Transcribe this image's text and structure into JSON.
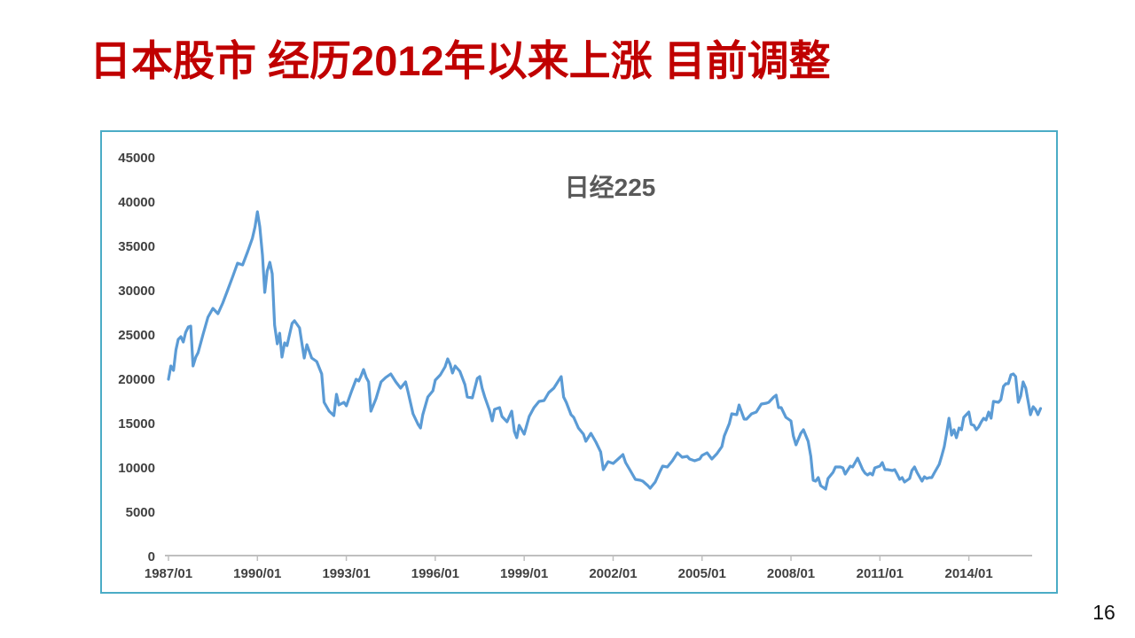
{
  "slide": {
    "title": "日本股市 经历2012年以来上涨 目前调整",
    "title_color": "#C00000",
    "page_number": "16",
    "background_color": "#ffffff"
  },
  "chart": {
    "title": "日经225",
    "title_color": "#595959",
    "panel_border_color": "#4BACC6",
    "line_color": "#5B9BD5",
    "axis_line_color": "#BFBFBF",
    "axis_label_color": "#404040",
    "y_axis_labels": [
      "45000",
      "40000",
      "35000",
      "30000",
      "25000",
      "20000",
      "15000",
      "10000",
      "5000",
      "0"
    ],
    "x_axis_labels": [
      "1987/01",
      "1990/01",
      "1993/01",
      "1996/01",
      "1999/01",
      "2002/01",
      "2005/01",
      "2008/01",
      "2011/01",
      "2014/01"
    ],
    "gridlines": false,
    "legend": false
  },
  "chart_data": {
    "type": "line",
    "title": "日经225",
    "series_name": "日经225",
    "xlabel": "",
    "ylabel": "",
    "x_unit": "decimal_year",
    "x_range": [
      1987.0,
      2016.45
    ],
    "ylim": [
      0,
      45000
    ],
    "y_tick_step": 5000,
    "x_tick_years": [
      1987,
      1990,
      1993,
      1996,
      1999,
      2002,
      2005,
      2008,
      2011,
      2014
    ],
    "points": [
      [
        1987.0,
        20000
      ],
      [
        1987.08,
        21500
      ],
      [
        1987.17,
        21000
      ],
      [
        1987.25,
        23300
      ],
      [
        1987.33,
        24500
      ],
      [
        1987.42,
        24800
      ],
      [
        1987.5,
        24200
      ],
      [
        1987.58,
        25300
      ],
      [
        1987.67,
        25900
      ],
      [
        1987.75,
        26000
      ],
      [
        1987.83,
        21500
      ],
      [
        1987.92,
        22500
      ],
      [
        1988.0,
        23000
      ],
      [
        1988.17,
        25100
      ],
      [
        1988.33,
        27000
      ],
      [
        1988.5,
        28000
      ],
      [
        1988.67,
        27400
      ],
      [
        1988.83,
        28600
      ],
      [
        1989.0,
        30100
      ],
      [
        1989.17,
        31600
      ],
      [
        1989.33,
        33100
      ],
      [
        1989.5,
        32900
      ],
      [
        1989.67,
        34400
      ],
      [
        1989.83,
        35900
      ],
      [
        1989.92,
        37200
      ],
      [
        1990.0,
        38900
      ],
      [
        1990.08,
        37200
      ],
      [
        1990.17,
        34000
      ],
      [
        1990.25,
        29800
      ],
      [
        1990.33,
        32200
      ],
      [
        1990.42,
        33200
      ],
      [
        1990.5,
        31900
      ],
      [
        1990.58,
        26100
      ],
      [
        1990.67,
        24000
      ],
      [
        1990.75,
        25200
      ],
      [
        1990.83,
        22500
      ],
      [
        1990.92,
        24100
      ],
      [
        1991.0,
        23800
      ],
      [
        1991.17,
        26300
      ],
      [
        1991.25,
        26600
      ],
      [
        1991.42,
        25800
      ],
      [
        1991.5,
        24100
      ],
      [
        1991.58,
        22400
      ],
      [
        1991.67,
        23900
      ],
      [
        1991.83,
        22400
      ],
      [
        1992.0,
        22000
      ],
      [
        1992.17,
        20600
      ],
      [
        1992.25,
        17400
      ],
      [
        1992.42,
        16400
      ],
      [
        1992.58,
        15900
      ],
      [
        1992.67,
        18300
      ],
      [
        1992.75,
        17100
      ],
      [
        1992.92,
        17400
      ],
      [
        1993.0,
        17000
      ],
      [
        1993.17,
        18600
      ],
      [
        1993.33,
        20000
      ],
      [
        1993.42,
        19800
      ],
      [
        1993.5,
        20400
      ],
      [
        1993.58,
        21100
      ],
      [
        1993.67,
        20200
      ],
      [
        1993.75,
        19700
      ],
      [
        1993.83,
        16400
      ],
      [
        1994.0,
        17800
      ],
      [
        1994.17,
        19700
      ],
      [
        1994.33,
        20200
      ],
      [
        1994.5,
        20600
      ],
      [
        1994.67,
        19700
      ],
      [
        1994.83,
        19000
      ],
      [
        1995.0,
        19700
      ],
      [
        1995.08,
        18600
      ],
      [
        1995.25,
        16100
      ],
      [
        1995.42,
        14900
      ],
      [
        1995.5,
        14500
      ],
      [
        1995.58,
        16000
      ],
      [
        1995.75,
        18000
      ],
      [
        1995.92,
        18700
      ],
      [
        1996.0,
        19900
      ],
      [
        1996.17,
        20500
      ],
      [
        1996.33,
        21400
      ],
      [
        1996.42,
        22300
      ],
      [
        1996.5,
        21700
      ],
      [
        1996.58,
        20700
      ],
      [
        1996.67,
        21500
      ],
      [
        1996.83,
        20900
      ],
      [
        1997.0,
        19400
      ],
      [
        1997.08,
        18000
      ],
      [
        1997.25,
        17900
      ],
      [
        1997.42,
        20100
      ],
      [
        1997.5,
        20300
      ],
      [
        1997.58,
        19000
      ],
      [
        1997.67,
        18000
      ],
      [
        1997.83,
        16500
      ],
      [
        1997.92,
        15300
      ],
      [
        1998.0,
        16600
      ],
      [
        1998.17,
        16800
      ],
      [
        1998.25,
        15800
      ],
      [
        1998.42,
        15200
      ],
      [
        1998.58,
        16400
      ],
      [
        1998.67,
        14100
      ],
      [
        1998.75,
        13400
      ],
      [
        1998.83,
        14800
      ],
      [
        1999.0,
        13800
      ],
      [
        1999.17,
        15800
      ],
      [
        1999.33,
        16800
      ],
      [
        1999.5,
        17500
      ],
      [
        1999.67,
        17600
      ],
      [
        1999.83,
        18500
      ],
      [
        2000.0,
        19000
      ],
      [
        2000.17,
        19900
      ],
      [
        2000.25,
        20300
      ],
      [
        2000.33,
        18000
      ],
      [
        2000.42,
        17400
      ],
      [
        2000.58,
        16000
      ],
      [
        2000.67,
        15700
      ],
      [
        2000.83,
        14500
      ],
      [
        2001.0,
        13800
      ],
      [
        2001.08,
        13000
      ],
      [
        2001.25,
        13900
      ],
      [
        2001.42,
        12900
      ],
      [
        2001.58,
        11800
      ],
      [
        2001.67,
        9800
      ],
      [
        2001.83,
        10700
      ],
      [
        2002.0,
        10500
      ],
      [
        2002.17,
        11000
      ],
      [
        2002.33,
        11500
      ],
      [
        2002.42,
        10600
      ],
      [
        2002.58,
        9700
      ],
      [
        2002.75,
        8700
      ],
      [
        2002.92,
        8600
      ],
      [
        2003.0,
        8500
      ],
      [
        2003.17,
        8000
      ],
      [
        2003.25,
        7700
      ],
      [
        2003.42,
        8400
      ],
      [
        2003.58,
        9600
      ],
      [
        2003.67,
        10200
      ],
      [
        2003.83,
        10100
      ],
      [
        2004.0,
        10800
      ],
      [
        2004.17,
        11700
      ],
      [
        2004.33,
        11200
      ],
      [
        2004.5,
        11300
      ],
      [
        2004.58,
        11000
      ],
      [
        2004.75,
        10800
      ],
      [
        2004.92,
        11000
      ],
      [
        2005.0,
        11400
      ],
      [
        2005.17,
        11700
      ],
      [
        2005.33,
        11000
      ],
      [
        2005.5,
        11600
      ],
      [
        2005.67,
        12400
      ],
      [
        2005.75,
        13600
      ],
      [
        2005.92,
        15000
      ],
      [
        2006.0,
        16100
      ],
      [
        2006.17,
        16000
      ],
      [
        2006.25,
        17100
      ],
      [
        2006.42,
        15500
      ],
      [
        2006.5,
        15500
      ],
      [
        2006.67,
        16100
      ],
      [
        2006.83,
        16300
      ],
      [
        2007.0,
        17200
      ],
      [
        2007.17,
        17300
      ],
      [
        2007.25,
        17400
      ],
      [
        2007.42,
        18000
      ],
      [
        2007.5,
        18200
      ],
      [
        2007.58,
        16800
      ],
      [
        2007.67,
        16800
      ],
      [
        2007.83,
        15700
      ],
      [
        2008.0,
        15300
      ],
      [
        2008.08,
        13600
      ],
      [
        2008.17,
        12600
      ],
      [
        2008.33,
        13900
      ],
      [
        2008.42,
        14300
      ],
      [
        2008.58,
        13000
      ],
      [
        2008.67,
        11300
      ],
      [
        2008.75,
        8600
      ],
      [
        2008.83,
        8500
      ],
      [
        2008.92,
        8900
      ],
      [
        2009.0,
        8000
      ],
      [
        2009.17,
        7600
      ],
      [
        2009.25,
        8800
      ],
      [
        2009.42,
        9500
      ],
      [
        2009.5,
        10100
      ],
      [
        2009.67,
        10100
      ],
      [
        2009.75,
        10000
      ],
      [
        2009.83,
        9300
      ],
      [
        2010.0,
        10200
      ],
      [
        2010.08,
        10100
      ],
      [
        2010.25,
        11100
      ],
      [
        2010.42,
        9800
      ],
      [
        2010.5,
        9400
      ],
      [
        2010.58,
        9200
      ],
      [
        2010.67,
        9400
      ],
      [
        2010.75,
        9200
      ],
      [
        2010.83,
        10000
      ],
      [
        2011.0,
        10200
      ],
      [
        2011.08,
        10600
      ],
      [
        2011.17,
        9800
      ],
      [
        2011.25,
        9800
      ],
      [
        2011.42,
        9700
      ],
      [
        2011.5,
        9800
      ],
      [
        2011.58,
        9300
      ],
      [
        2011.67,
        8700
      ],
      [
        2011.75,
        8900
      ],
      [
        2011.83,
        8400
      ],
      [
        2012.0,
        8800
      ],
      [
        2012.08,
        9700
      ],
      [
        2012.17,
        10100
      ],
      [
        2012.25,
        9500
      ],
      [
        2012.42,
        8500
      ],
      [
        2012.5,
        9000
      ],
      [
        2012.58,
        8800
      ],
      [
        2012.67,
        8900
      ],
      [
        2012.75,
        8900
      ],
      [
        2012.83,
        9400
      ],
      [
        2013.0,
        10400
      ],
      [
        2013.08,
        11300
      ],
      [
        2013.17,
        12400
      ],
      [
        2013.25,
        13900
      ],
      [
        2013.33,
        15600
      ],
      [
        2013.42,
        13700
      ],
      [
        2013.5,
        14300
      ],
      [
        2013.58,
        13400
      ],
      [
        2013.67,
        14500
      ],
      [
        2013.75,
        14300
      ],
      [
        2013.83,
        15700
      ],
      [
        2014.0,
        16300
      ],
      [
        2014.08,
        14900
      ],
      [
        2014.17,
        14800
      ],
      [
        2014.25,
        14300
      ],
      [
        2014.33,
        14600
      ],
      [
        2014.42,
        15200
      ],
      [
        2014.5,
        15600
      ],
      [
        2014.58,
        15400
      ],
      [
        2014.67,
        16300
      ],
      [
        2014.75,
        15600
      ],
      [
        2014.83,
        17500
      ],
      [
        2015.0,
        17400
      ],
      [
        2015.08,
        17700
      ],
      [
        2015.17,
        19200
      ],
      [
        2015.25,
        19500
      ],
      [
        2015.33,
        19500
      ],
      [
        2015.42,
        20500
      ],
      [
        2015.5,
        20600
      ],
      [
        2015.58,
        20300
      ],
      [
        2015.67,
        17400
      ],
      [
        2015.75,
        18100
      ],
      [
        2015.83,
        19700
      ],
      [
        2015.92,
        19000
      ],
      [
        2016.0,
        17500
      ],
      [
        2016.08,
        16000
      ],
      [
        2016.17,
        16900
      ],
      [
        2016.25,
        16600
      ],
      [
        2016.33,
        16000
      ],
      [
        2016.42,
        16700
      ]
    ]
  }
}
